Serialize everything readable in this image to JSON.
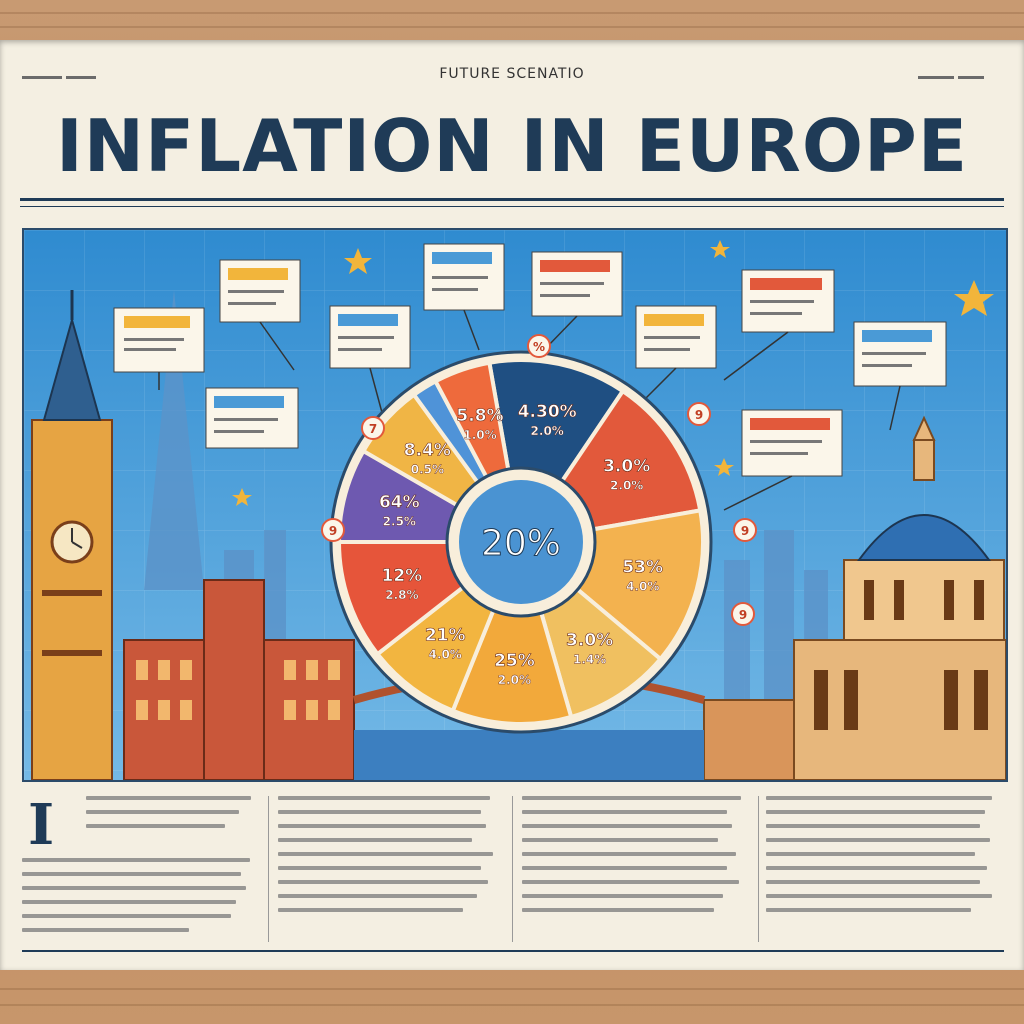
{
  "header": {
    "kicker": "FUTURE SCENATIO",
    "headline": "INFLATION IN EUROPE"
  },
  "pie": {
    "center_label": "20%",
    "slices": [
      {
        "label1": "4.30%",
        "label2": "2.0%",
        "color": "#1f4f82"
      },
      {
        "label1": "3.0%",
        "label2": "2.0%",
        "color": "#e2593b"
      },
      {
        "label1": "53%",
        "label2": "4.0%",
        "color": "#f3b24f"
      },
      {
        "label1": "3.0%",
        "label2": "1.4%",
        "color": "#f0c060"
      },
      {
        "label1": "25%",
        "label2": "2.0%",
        "color": "#f2a93b"
      },
      {
        "label1": "21%",
        "label2": "4.0%",
        "color": "#f2b540"
      },
      {
        "label1": "12%",
        "label2": "2.8%",
        "color": "#e6553a"
      },
      {
        "label1": "64%",
        "label2": "2.5%",
        "color": "#6e59b0"
      },
      {
        "label1": "8.4%",
        "label2": "0.5%",
        "color": "#f0b545"
      },
      {
        "label1": "",
        "label2": "",
        "color": "#4f93d8"
      },
      {
        "label1": "5.8%",
        "label2": "1.0%",
        "color": "#ee6a3c"
      }
    ],
    "badges": [
      "%",
      "7",
      "9",
      "9",
      "9",
      "9"
    ]
  },
  "colors": {
    "navy": "#1f3b57",
    "sky": "#4a9ad6",
    "paper": "#f4efe2"
  },
  "article": {
    "dropcap": "I"
  }
}
